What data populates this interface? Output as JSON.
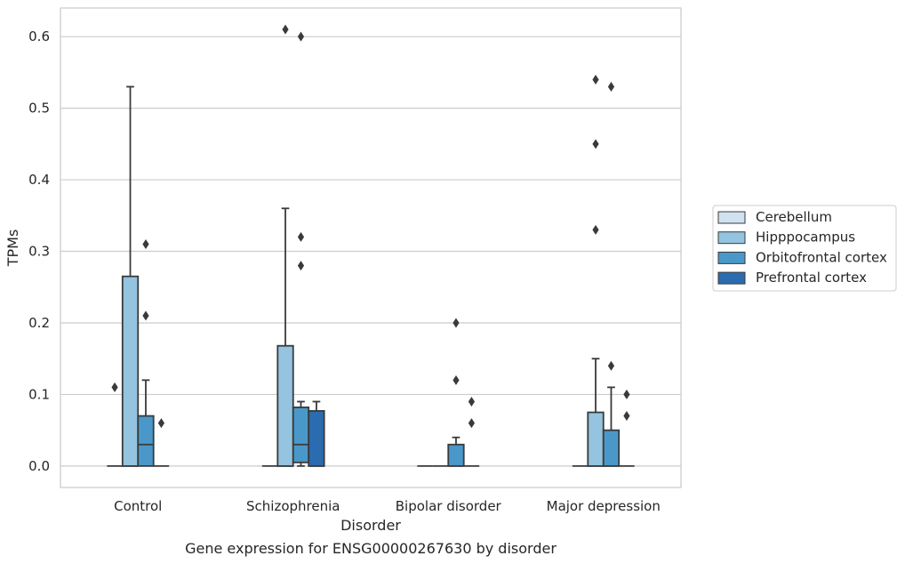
{
  "chart_data": {
    "type": "box",
    "caption": "Gene expression for ENSG00000267630 by disorder",
    "xlabel": "Disorder",
    "ylabel": "TPMs",
    "ylim": [
      -0.03,
      0.64
    ],
    "yticks": [
      0.0,
      0.1,
      0.2,
      0.3,
      0.4,
      0.5,
      0.6
    ],
    "ytick_labels": [
      "0.0",
      "0.1",
      "0.2",
      "0.3",
      "0.4",
      "0.5",
      "0.6"
    ],
    "grid": "horizontal",
    "legend_position": "right",
    "categories": [
      "Control",
      "Schizophrenia",
      "Bipolar disorder",
      "Major depression"
    ],
    "series": [
      {
        "name": "Cerebellum",
        "color": "#d0e1f2",
        "boxes": [
          {
            "q1": 0,
            "median": 0,
            "q3": 0,
            "whisker_low": 0,
            "whisker_high": 0,
            "outliers": [
              0.11
            ]
          },
          {
            "q1": 0,
            "median": 0,
            "q3": 0,
            "whisker_low": 0,
            "whisker_high": 0,
            "outliers": []
          },
          {
            "q1": 0,
            "median": 0,
            "q3": 0,
            "whisker_low": 0,
            "whisker_high": 0,
            "outliers": []
          },
          {
            "q1": 0,
            "median": 0,
            "q3": 0,
            "whisker_low": 0,
            "whisker_high": 0,
            "outliers": []
          }
        ]
      },
      {
        "name": "Hipppocampus",
        "color": "#94c4df",
        "boxes": [
          {
            "q1": 0,
            "median": 0,
            "q3": 0.265,
            "whisker_low": 0,
            "whisker_high": 0.53,
            "outliers": []
          },
          {
            "q1": 0,
            "median": 0,
            "q3": 0.168,
            "whisker_low": 0,
            "whisker_high": 0.36,
            "outliers": [
              0.61
            ]
          },
          {
            "q1": 0,
            "median": 0,
            "q3": 0,
            "whisker_low": 0,
            "whisker_high": 0,
            "outliers": []
          },
          {
            "q1": 0,
            "median": 0,
            "q3": 0.075,
            "whisker_low": 0,
            "whisker_high": 0.15,
            "outliers": [
              0.54,
              0.45,
              0.33
            ]
          }
        ]
      },
      {
        "name": "Orbitofrontal cortex",
        "color": "#4a98c9",
        "boxes": [
          {
            "q1": 0,
            "median": 0.03,
            "q3": 0.07,
            "whisker_low": 0,
            "whisker_high": 0.12,
            "outliers": [
              0.31,
              0.21
            ]
          },
          {
            "q1": 0.005,
            "median": 0.03,
            "q3": 0.082,
            "whisker_low": 0,
            "whisker_high": 0.09,
            "outliers": [
              0.6,
              0.32,
              0.28
            ]
          },
          {
            "q1": 0,
            "median": 0,
            "q3": 0.03,
            "whisker_low": 0,
            "whisker_high": 0.04,
            "outliers": [
              0.2,
              0.12
            ]
          },
          {
            "q1": 0,
            "median": 0,
            "q3": 0.05,
            "whisker_low": 0,
            "whisker_high": 0.11,
            "outliers": [
              0.53,
              0.14
            ]
          }
        ]
      },
      {
        "name": "Prefrontal cortex",
        "color": "#2b6cb0",
        "boxes": [
          {
            "q1": 0,
            "median": 0,
            "q3": 0,
            "whisker_low": 0,
            "whisker_high": 0,
            "outliers": [
              0.06
            ]
          },
          {
            "q1": 0,
            "median": 0,
            "q3": 0.077,
            "whisker_low": 0,
            "whisker_high": 0.09,
            "outliers": []
          },
          {
            "q1": 0,
            "median": 0,
            "q3": 0,
            "whisker_low": 0,
            "whisker_high": 0,
            "outliers": [
              0.09,
              0.06
            ]
          },
          {
            "q1": 0,
            "median": 0,
            "q3": 0,
            "whisker_low": 0,
            "whisker_high": 0,
            "outliers": [
              0.1,
              0.07
            ]
          }
        ]
      }
    ]
  }
}
